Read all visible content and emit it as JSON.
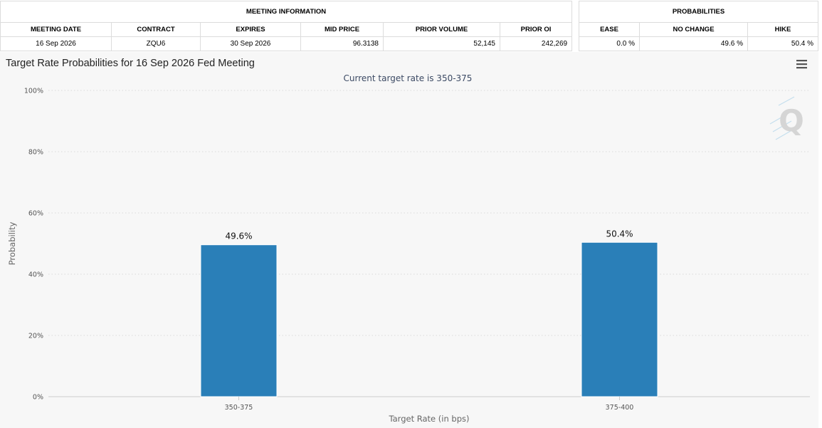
{
  "meeting_info": {
    "header": "MEETING INFORMATION",
    "columns": [
      "MEETING DATE",
      "CONTRACT",
      "EXPIRES",
      "MID PRICE",
      "PRIOR VOLUME",
      "PRIOR OI"
    ],
    "row": {
      "meeting_date": "16 Sep 2026",
      "contract": "ZQU6",
      "expires": "30 Sep 2026",
      "mid_price": "96.3138",
      "prior_volume": "52,145",
      "prior_oi": "242,269"
    }
  },
  "probabilities": {
    "header": "PROBABILITIES",
    "columns": [
      "EASE",
      "NO CHANGE",
      "HIKE"
    ],
    "row": {
      "ease": "0.0 %",
      "no_change": "49.6 %",
      "hike": "50.4 %"
    }
  },
  "chart_data": {
    "type": "bar",
    "title": "Target Rate Probabilities for 16 Sep 2026 Fed Meeting",
    "subtitle": "Current target rate is 350-375",
    "xlabel": "Target Rate (in bps)",
    "ylabel": "Probability",
    "categories": [
      "350-375",
      "375-400"
    ],
    "values": [
      49.6,
      50.4
    ],
    "data_labels": [
      "49.6%",
      "50.4%"
    ],
    "ylim": [
      0,
      100
    ],
    "yticks": [
      0,
      20,
      40,
      60,
      80,
      100
    ],
    "ytick_labels": [
      "0%",
      "20%",
      "40%",
      "60%",
      "80%",
      "100%"
    ],
    "grid": true,
    "bar_color": "#2a7fb8",
    "legend": "none"
  },
  "icons": {
    "menu": "hamburger-menu-icon",
    "watermark": "q-logo-watermark"
  },
  "watermark_text": "Q"
}
